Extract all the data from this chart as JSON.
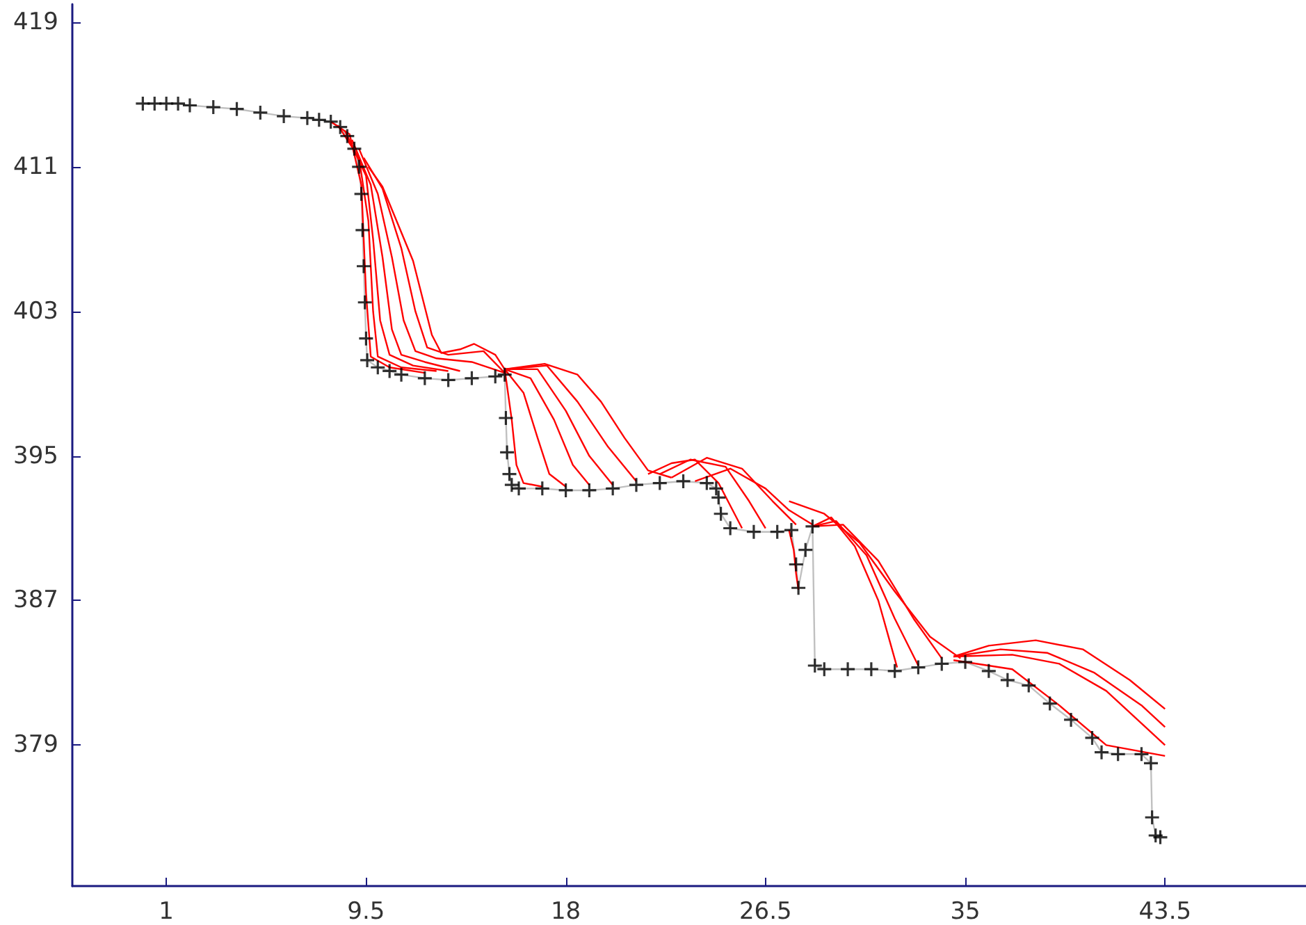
{
  "chart_data": {
    "type": "line",
    "xlim": [
      -3,
      49.5
    ],
    "ylim": [
      371.2,
      420
    ],
    "xticks": [
      1,
      9.5,
      18,
      26.5,
      35,
      43.5
    ],
    "yticks": [
      379,
      387,
      395,
      403,
      411,
      419
    ],
    "grid": false,
    "series": [
      {
        "color": "#c0c0c0",
        "marker": "none",
        "x": [
          0,
          0.5,
          1,
          1.5,
          2,
          3,
          4,
          5,
          6,
          7,
          7.5,
          8,
          8.4,
          8.7,
          9,
          9.2,
          9.3,
          9.35,
          9.4,
          9.45,
          9.5,
          9.55,
          10,
          10.5,
          11,
          12,
          13,
          14,
          15,
          15.4,
          15.45,
          15.5,
          15.6,
          15.7,
          16,
          17,
          18,
          19,
          20,
          21,
          22,
          23,
          24,
          24.4,
          24.5,
          24.6,
          25,
          26,
          27,
          27.6,
          27.8,
          27.9,
          28.2,
          28.5,
          28.6,
          29,
          30,
          31,
          32,
          33,
          34,
          35,
          36,
          36.8,
          37.7,
          38.6,
          39.5,
          40.4,
          40.8,
          41.5,
          42.5,
          42.9,
          42.95,
          43.1,
          43.3
        ],
        "values": [
          414.5,
          414.5,
          414.5,
          414.5,
          414.4,
          414.3,
          414.2,
          414,
          413.8,
          413.7,
          413.6,
          413.5,
          413.2,
          412.7,
          412,
          411,
          409.5,
          407.5,
          405.5,
          403.5,
          401.5,
          400.3,
          399.9,
          399.7,
          399.5,
          399.3,
          399.2,
          399.3,
          399.4,
          399.5,
          397.1,
          395.2,
          394,
          393.4,
          393.2,
          393.2,
          393.1,
          393.1,
          393.2,
          393.4,
          393.5,
          393.6,
          393.5,
          393.2,
          392.7,
          391.8,
          391,
          390.8,
          390.8,
          390.9,
          389,
          387.7,
          389.8,
          391.1,
          383.4,
          383.2,
          383.2,
          383.2,
          383.1,
          383.3,
          383.5,
          383.6,
          383.1,
          382.6,
          382.3,
          381.3,
          380.4,
          379.4,
          378.6,
          378.5,
          378.5,
          378,
          375,
          374,
          373.9
        ]
      },
      {
        "type": "scatter",
        "color": "#000000",
        "marker": "cross",
        "x": [
          0,
          0.5,
          1,
          1.5,
          2,
          3,
          4,
          5,
          6,
          7,
          7.5,
          8,
          8.4,
          8.7,
          9,
          9.2,
          9.3,
          9.35,
          9.4,
          9.45,
          9.5,
          9.55,
          10,
          10.5,
          11,
          12,
          13,
          14,
          15,
          15.4,
          15.45,
          15.5,
          15.6,
          15.7,
          16,
          17,
          18,
          19,
          20,
          21,
          22,
          23,
          24,
          24.4,
          24.5,
          24.6,
          25,
          26,
          27,
          27.6,
          27.8,
          27.9,
          28.2,
          28.5,
          28.6,
          29,
          30,
          31,
          32,
          33,
          34,
          35,
          36,
          36.8,
          37.7,
          38.6,
          39.5,
          40.4,
          40.8,
          41.5,
          42.5,
          42.9,
          42.95,
          43.1,
          43.3
        ],
        "values": [
          414.5,
          414.5,
          414.5,
          414.5,
          414.4,
          414.3,
          414.2,
          414,
          413.8,
          413.7,
          413.6,
          413.5,
          413.2,
          412.7,
          412,
          411,
          409.5,
          407.5,
          405.5,
          403.5,
          401.5,
          400.3,
          399.9,
          399.7,
          399.5,
          399.3,
          399.2,
          399.3,
          399.4,
          399.5,
          397.1,
          395.2,
          394,
          393.4,
          393.2,
          393.2,
          393.1,
          393.1,
          393.2,
          393.4,
          393.5,
          393.6,
          393.5,
          393.2,
          392.7,
          391.8,
          391,
          390.8,
          390.8,
          390.9,
          389,
          387.7,
          389.8,
          391.1,
          383.4,
          383.2,
          383.2,
          383.2,
          383.1,
          383.3,
          383.5,
          383.6,
          383.1,
          382.6,
          382.3,
          381.3,
          380.4,
          379.4,
          378.6,
          378.5,
          378.5,
          378,
          375,
          374,
          373.9
        ]
      },
      {
        "color": "#ff0000",
        "marker": "none",
        "x": [
          8,
          8.8,
          9.3,
          9.5,
          9.7,
          10.5,
          12
        ],
        "values": [
          413.5,
          412.8,
          410,
          404,
          400.5,
          399.9,
          399.6
        ]
      },
      {
        "color": "#ff0000",
        "marker": "none",
        "x": [
          8.3,
          9.2,
          9.6,
          9.8,
          10,
          11,
          12.5
        ],
        "values": [
          413.3,
          411.5,
          408,
          403,
          400.5,
          399.9,
          399.7
        ]
      },
      {
        "color": "#ff0000",
        "marker": "none",
        "x": [
          8.6,
          9.5,
          9.8,
          10.1,
          10.5,
          11.5,
          13
        ],
        "values": [
          413,
          410.5,
          407,
          402.5,
          400.6,
          400,
          399.7
        ]
      },
      {
        "color": "#ff0000",
        "marker": "none",
        "x": [
          8.9,
          9.7,
          10.2,
          10.6,
          11,
          12,
          13.5
        ],
        "values": [
          412.5,
          410,
          406,
          402,
          400.6,
          400.2,
          399.7
        ]
      },
      {
        "color": "#ff0000",
        "marker": "none",
        "x": [
          9.2,
          10,
          10.6,
          11.1,
          11.6,
          12.5,
          14,
          15.4
        ],
        "values": [
          412,
          409.5,
          406,
          402.5,
          400.8,
          400.4,
          400.2,
          399.6
        ]
      },
      {
        "color": "#ff0000",
        "marker": "none",
        "x": [
          9.4,
          10.2,
          11,
          11.6,
          12.1,
          13,
          14.5,
          15.4
        ],
        "values": [
          411.5,
          409.8,
          406.5,
          403,
          401,
          400.6,
          400.8,
          399.6
        ]
      },
      {
        "color": "#ff0000",
        "marker": "none",
        "x": [
          9.6,
          10.2,
          11.5,
          12.3,
          12.7,
          13.5,
          14.1,
          15,
          15.5
        ],
        "values": [
          411,
          409.9,
          405.8,
          401.7,
          400.7,
          400.9,
          401.2,
          400.6,
          399.6
        ]
      },
      {
        "color": "#ff0000",
        "marker": "none",
        "x": [
          15.4,
          15.7,
          15.9,
          16.2,
          17
        ],
        "values": [
          399.8,
          397,
          394.5,
          393.5,
          393.3
        ]
      },
      {
        "color": "#ff0000",
        "marker": "none",
        "x": [
          15.4,
          16.2,
          16.8,
          17.3,
          18
        ],
        "values": [
          399.8,
          398.5,
          396,
          394,
          393.3
        ]
      },
      {
        "color": "#ff0000",
        "marker": "none",
        "x": [
          15.4,
          16.5,
          17.5,
          18.3,
          19
        ],
        "values": [
          399.8,
          399.3,
          397,
          394.5,
          393.4
        ]
      },
      {
        "color": "#ff0000",
        "marker": "none",
        "x": [
          15.4,
          16.8,
          18,
          19,
          20
        ],
        "values": [
          399.8,
          399.8,
          397.5,
          395,
          393.4
        ]
      },
      {
        "color": "#ff0000",
        "marker": "none",
        "x": [
          15.4,
          17.2,
          18.5,
          19.8,
          21
        ],
        "values": [
          399.8,
          400,
          398,
          395.5,
          393.6
        ]
      },
      {
        "color": "#ff0000",
        "marker": "none",
        "x": [
          15.4,
          17.1,
          18.5,
          19.5,
          20.5,
          21.5,
          22.5
        ],
        "values": [
          399.8,
          400.1,
          399.5,
          398,
          396,
          394.2,
          393.8
        ]
      },
      {
        "color": "#ff0000",
        "marker": "none",
        "x": [
          21.5,
          22.5,
          23.5,
          24.5,
          25.5
        ],
        "values": [
          394,
          394.6,
          394.8,
          393.5,
          391
        ]
      },
      {
        "color": "#ff0000",
        "marker": "none",
        "x": [
          22,
          23.3,
          24.8,
          25.8,
          26.5
        ],
        "values": [
          394,
          394.8,
          394.4,
          392.5,
          391
        ]
      },
      {
        "color": "#ff0000",
        "marker": "none",
        "x": [
          22.5,
          24,
          25.5,
          26.8,
          27.8
        ],
        "values": [
          393.8,
          394.9,
          394.3,
          392.5,
          391.2
        ]
      },
      {
        "color": "#ff0000",
        "marker": "none",
        "x": [
          23.5,
          25,
          26.5,
          27.5,
          28.5
        ],
        "values": [
          393.6,
          394.3,
          393.2,
          392,
          391.2
        ]
      },
      {
        "color": "#ff0000",
        "marker": "none",
        "x": [
          27.5,
          27.7,
          27.8,
          27.9
        ],
        "values": [
          390.9,
          389.8,
          388.5,
          387.6
        ]
      },
      {
        "color": "#ff0000",
        "marker": "none",
        "x": [
          28.5,
          29.3,
          30.3,
          31.3,
          32.1
        ],
        "values": [
          391.1,
          391.6,
          390,
          387,
          383.3
        ]
      },
      {
        "color": "#ff0000",
        "marker": "none",
        "x": [
          28.5,
          29.5,
          30.8,
          32,
          33
        ],
        "values": [
          391.1,
          391.4,
          389.5,
          386,
          383.4
        ]
      },
      {
        "color": "#ff0000",
        "marker": "none",
        "x": [
          28.5,
          29.8,
          31.3,
          32.8,
          34
        ],
        "values": [
          391.1,
          391.2,
          389.2,
          386,
          383.8
        ]
      },
      {
        "color": "#ff0000",
        "marker": "none",
        "x": [
          27.5,
          29,
          30.5,
          32,
          33.5,
          34.8
        ],
        "values": [
          392.5,
          391.8,
          390.2,
          387.5,
          385,
          383.8
        ]
      },
      {
        "color": "#ff0000",
        "marker": "none",
        "x": [
          34.5,
          36,
          38,
          40,
          42,
          43.5
        ],
        "values": [
          383.9,
          384.5,
          384.8,
          384.3,
          382.6,
          381
        ]
      },
      {
        "color": "#ff0000",
        "marker": "none",
        "x": [
          34.5,
          36.5,
          38.5,
          40.5,
          42.5,
          43.5
        ],
        "values": [
          383.9,
          384.3,
          384.1,
          383,
          381.2,
          380
        ]
      },
      {
        "color": "#ff0000",
        "marker": "none",
        "x": [
          34.5,
          37,
          39,
          41,
          42.5,
          43.5
        ],
        "values": [
          383.9,
          384,
          383.5,
          382,
          380.2,
          379
        ]
      },
      {
        "color": "#ff0000",
        "marker": "none",
        "x": [
          34.5,
          37,
          39,
          41,
          43.5
        ],
        "values": [
          383.7,
          383.2,
          381.2,
          379,
          378.4
        ]
      }
    ]
  }
}
